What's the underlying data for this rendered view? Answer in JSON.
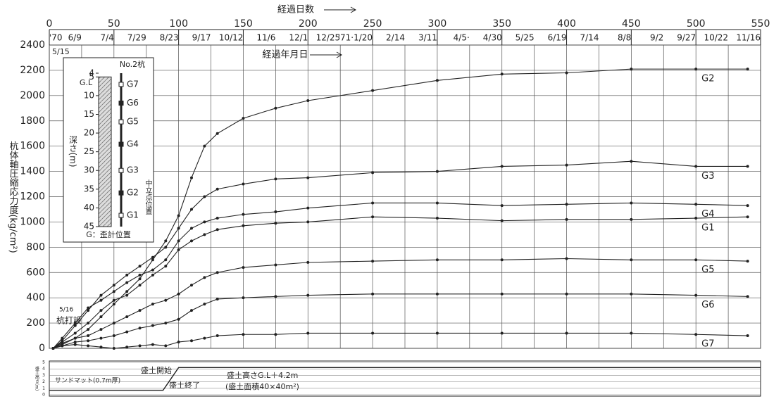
{
  "chart_data": {
    "type": "line",
    "title": "経過日数",
    "subtitle": "経過年月日",
    "y_label": "杭体軸圧縮応力度(kg/cm²)",
    "xlim": [
      0,
      550
    ],
    "xticks": [
      0,
      50,
      100,
      150,
      200,
      250,
      300,
      350,
      400,
      450,
      500,
      550
    ],
    "date_ticks": [
      {
        "value": 0,
        "label": "'70"
      },
      {
        "value": 25,
        "label": "6/9"
      },
      {
        "value": 50,
        "label": "7/4"
      },
      {
        "value": 75,
        "label": "7/29"
      },
      {
        "value": 100,
        "label": "8/23"
      },
      {
        "value": 125,
        "label": "9/17"
      },
      {
        "value": 150,
        "label": "10/12"
      },
      {
        "value": 175,
        "label": "11/6"
      },
      {
        "value": 200,
        "label": "12/1"
      },
      {
        "value": 225,
        "label": "12/25"
      },
      {
        "value": 250,
        "label": "'71·1/20"
      },
      {
        "value": 275,
        "label": "2/14"
      },
      {
        "value": 300,
        "label": "3/11"
      },
      {
        "value": 325,
        "label": "4/5·"
      },
      {
        "value": 350,
        "label": "4/30"
      },
      {
        "value": 375,
        "label": "5/25"
      },
      {
        "value": 400,
        "label": "6/19"
      },
      {
        "value": 425,
        "label": "7/14"
      },
      {
        "value": 450,
        "label": "8/8"
      },
      {
        "value": 475,
        "label": "9/2"
      },
      {
        "value": 500,
        "label": "9/27"
      },
      {
        "value": 525,
        "label": "10/22"
      },
      {
        "value": 550,
        "label": "11/16"
      }
    ],
    "start_date": "5/15",
    "ylim": [
      0,
      2400
    ],
    "yticks": [
      0,
      200,
      400,
      600,
      800,
      1000,
      1200,
      1400,
      1600,
      1800,
      2000,
      2200,
      2400
    ],
    "grid": true,
    "x": [
      3,
      10,
      20,
      30,
      40,
      50,
      60,
      70,
      80,
      90,
      100,
      110,
      120,
      130,
      150,
      175,
      200,
      250,
      300,
      350,
      400,
      450,
      500,
      540
    ],
    "series": [
      {
        "name": "G2",
        "color": "#222",
        "values": [
          0,
          30,
          80,
          150,
          250,
          350,
          450,
          550,
          700,
          850,
          1050,
          1350,
          1600,
          1700,
          1820,
          1900,
          1960,
          2040,
          2120,
          2170,
          2180,
          2210,
          2210,
          2210
        ]
      },
      {
        "name": "G3",
        "color": "#222",
        "values": [
          0,
          60,
          180,
          300,
          420,
          500,
          580,
          650,
          720,
          800,
          950,
          1100,
          1200,
          1260,
          1300,
          1340,
          1350,
          1390,
          1400,
          1440,
          1450,
          1480,
          1440,
          1440
        ]
      },
      {
        "name": "G4",
        "color": "#222",
        "values": [
          0,
          80,
          200,
          320,
          380,
          450,
          520,
          580,
          620,
          700,
          850,
          950,
          1000,
          1030,
          1060,
          1080,
          1110,
          1150,
          1150,
          1130,
          1140,
          1150,
          1140,
          1130
        ]
      },
      {
        "name": "G1",
        "color": "#222",
        "values": [
          0,
          50,
          120,
          200,
          300,
          380,
          420,
          500,
          580,
          650,
          780,
          850,
          900,
          940,
          970,
          990,
          1000,
          1040,
          1030,
          1010,
          1020,
          1020,
          1030,
          1040
        ]
      },
      {
        "name": "G5",
        "color": "#222",
        "values": [
          0,
          40,
          80,
          100,
          150,
          200,
          250,
          300,
          350,
          380,
          430,
          500,
          560,
          600,
          640,
          660,
          680,
          690,
          700,
          700,
          710,
          700,
          700,
          690
        ]
      },
      {
        "name": "G6",
        "color": "#222",
        "values": [
          0,
          20,
          50,
          60,
          80,
          100,
          130,
          160,
          180,
          200,
          230,
          300,
          350,
          390,
          400,
          410,
          420,
          430,
          430,
          430,
          430,
          430,
          420,
          410
        ]
      },
      {
        "name": "G7",
        "color": "#222",
        "values": [
          0,
          20,
          30,
          20,
          10,
          0,
          10,
          20,
          30,
          20,
          50,
          60,
          80,
          100,
          110,
          110,
          120,
          120,
          120,
          120,
          120,
          120,
          110,
          100
        ]
      }
    ],
    "annotations": {
      "pile_date": "5/16",
      "pile_driving": "杭打設"
    },
    "inset": {
      "title": "No.2杭",
      "depth_label": "深さ(m)",
      "ground_label": "G.L",
      "depth_lim": [
        4,
        45
      ],
      "depth_ticks": [
        4,
        5,
        10,
        15,
        20,
        25,
        30,
        35,
        40,
        45
      ],
      "gauges": [
        {
          "name": "G7",
          "depth": 7
        },
        {
          "name": "G6",
          "depth": 12
        },
        {
          "name": "G5",
          "depth": 17
        },
        {
          "name": "G4",
          "depth": 23
        },
        {
          "name": "G3",
          "depth": 30
        },
        {
          "name": "G2",
          "depth": 36
        },
        {
          "name": "G1",
          "depth": 42
        }
      ],
      "neutral_label": "中立点位置",
      "legend": "G：歪計位置"
    },
    "fill_panel": {
      "y_label": "盛土高さ(m)",
      "ylim": [
        0,
        5
      ],
      "yticks": [
        0,
        1,
        2,
        3,
        4,
        5
      ],
      "x": [
        0,
        88,
        100,
        550
      ],
      "values": [
        0.7,
        0.7,
        4.2,
        4.2
      ],
      "sand_mat": "サンドマット(0.7m厚)",
      "fill_start": "盛土開始",
      "fill_end": "盛土終了",
      "fill_height": "盛土高さG.L＋4.2m",
      "fill_area": "(盛土面積40×40m²)"
    }
  }
}
